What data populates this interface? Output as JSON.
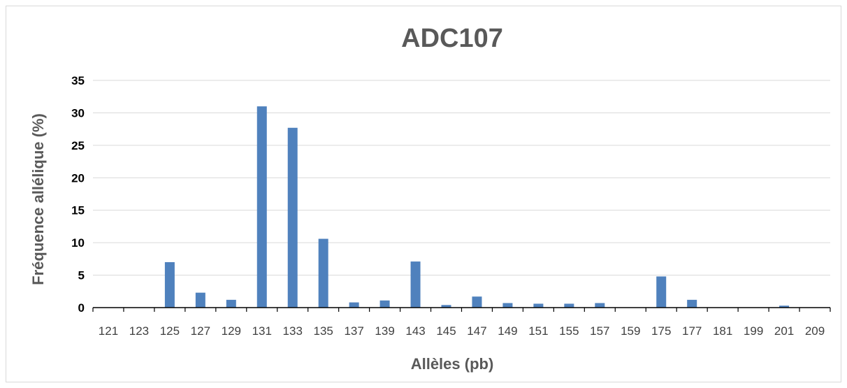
{
  "chart_data": {
    "type": "bar",
    "title": "ADC107",
    "xlabel": "Allèles (pb)",
    "ylabel": "Fréquence allélique (%)",
    "ylim": [
      0,
      35
    ],
    "yticks": [
      "0",
      "5",
      "10",
      "15",
      "20",
      "25",
      "30",
      "35"
    ],
    "grid": true,
    "categories": [
      "121",
      "123",
      "125",
      "127",
      "129",
      "131",
      "133",
      "135",
      "137",
      "139",
      "143",
      "145",
      "147",
      "149",
      "151",
      "155",
      "157",
      "159",
      "175",
      "177",
      "181",
      "199",
      "201",
      "209"
    ],
    "values": [
      0,
      0,
      7.0,
      2.3,
      1.2,
      31.0,
      27.7,
      10.6,
      0.8,
      1.1,
      7.1,
      0.4,
      1.7,
      0.7,
      0.6,
      0.6,
      0.7,
      0,
      4.8,
      1.2,
      0,
      0,
      0.3,
      0
    ],
    "bar_color": "#4f81bd"
  }
}
